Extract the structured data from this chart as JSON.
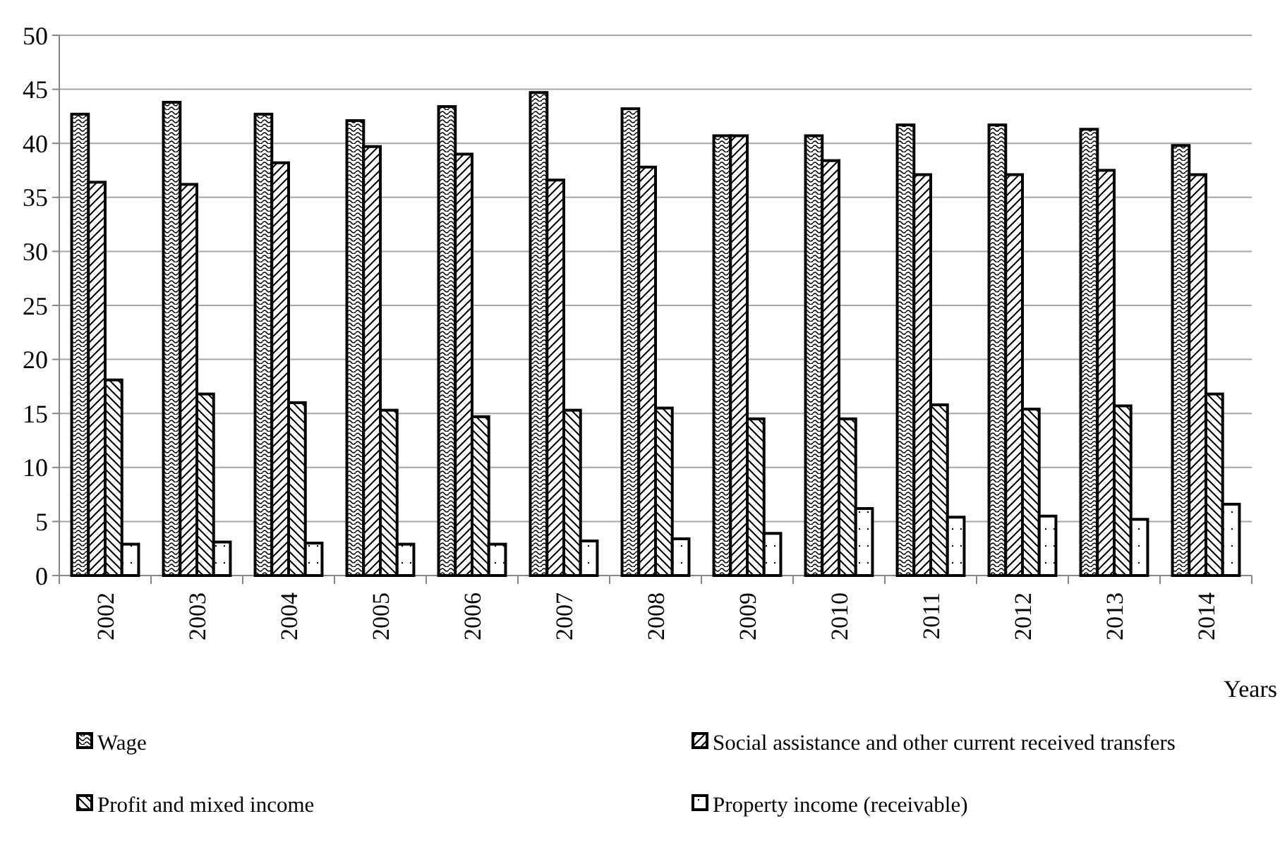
{
  "chart_data": {
    "type": "bar",
    "xlabel": "Years",
    "categories": [
      "2002",
      "2003",
      "2004",
      "2005",
      "2006",
      "2007",
      "2008",
      "2009",
      "2010",
      "2011",
      "2012",
      "2013",
      "2014"
    ],
    "series": [
      {
        "name": "Wage",
        "color": "#000000",
        "values": [
          42.7,
          43.8,
          42.7,
          42.1,
          43.4,
          44.7,
          43.2,
          40.7,
          40.7,
          41.7,
          41.7,
          41.3,
          39.8
        ]
      },
      {
        "name": "Social assistance and other current  received transfers",
        "color": "#000000",
        "values": [
          36.4,
          36.2,
          38.2,
          39.7,
          39.0,
          36.6,
          37.8,
          40.7,
          38.4,
          37.1,
          37.1,
          37.5,
          37.1
        ]
      },
      {
        "name": "Profit and mixed income",
        "color": "#000000",
        "values": [
          18.1,
          16.8,
          16.0,
          15.3,
          14.7,
          15.3,
          15.5,
          14.5,
          14.5,
          15.8,
          15.4,
          15.7,
          16.8
        ]
      },
      {
        "name": "Property income (receivable)",
        "color": "#000000",
        "values": [
          2.9,
          3.1,
          3.0,
          2.9,
          2.9,
          3.2,
          3.4,
          3.9,
          6.2,
          5.4,
          5.5,
          5.2,
          6.6
        ]
      }
    ],
    "ylim": [
      0,
      50
    ],
    "yticks": [
      0,
      5,
      10,
      15,
      20,
      25,
      30,
      35,
      40,
      45,
      50
    ],
    "grid": "y",
    "legend": "bottom"
  }
}
